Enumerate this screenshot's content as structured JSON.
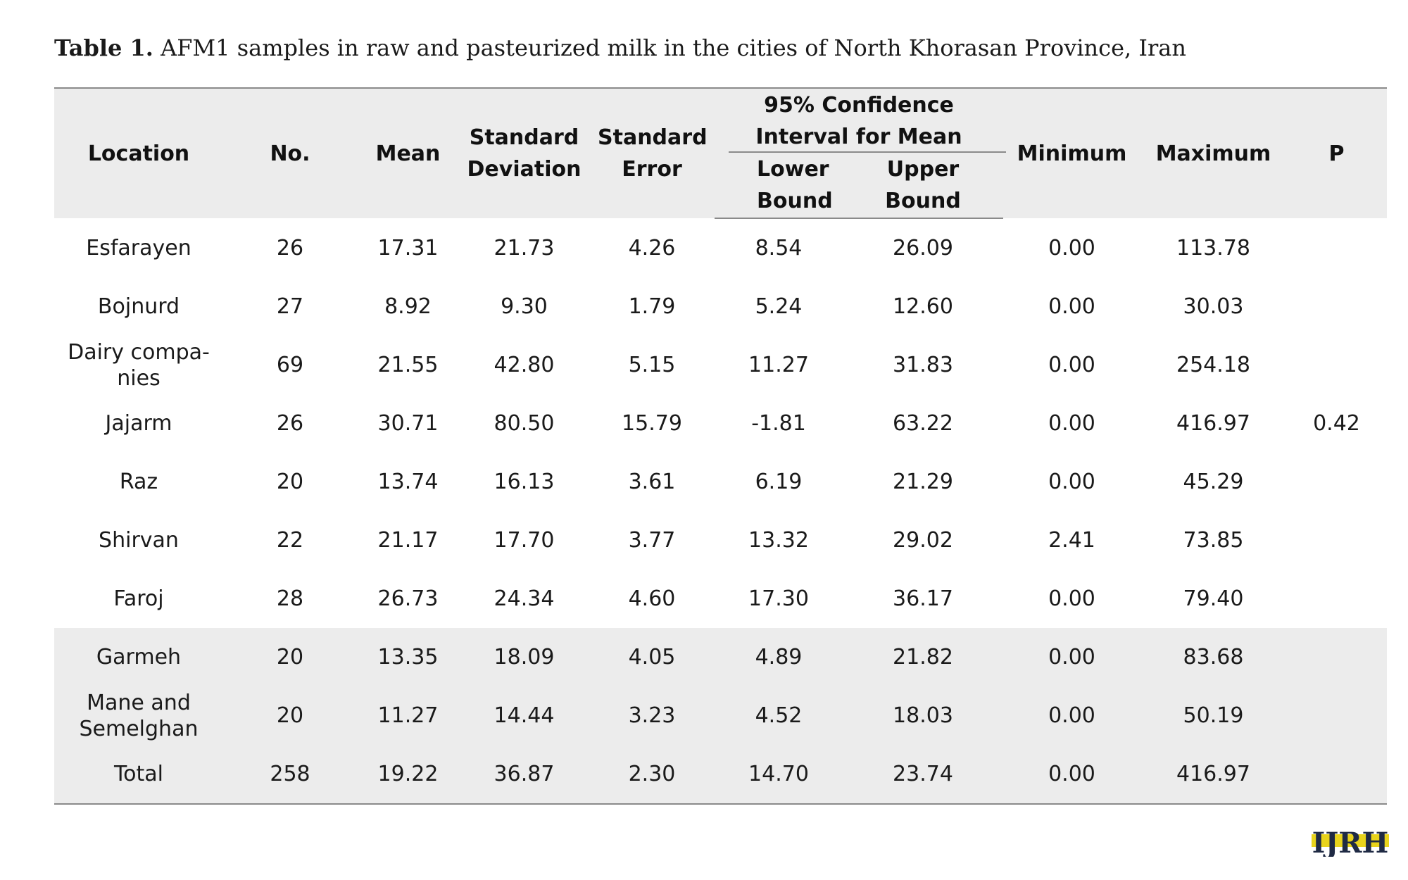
{
  "caption": {
    "label": "Table 1.",
    "text": " AFM1 samples in raw and pasteurized milk in the cities of North Khorasan Province, Iran"
  },
  "headers": {
    "location": "Location",
    "no": "No.",
    "mean": "Mean",
    "sd": "Standard Deviation",
    "se": "Standard Error",
    "ci": "95% Confidence Interval for Mean",
    "lower": "Lower Bound",
    "upper": "Upper Bound",
    "min": "Minimum",
    "max": "Maximum",
    "p": "P"
  },
  "rows": [
    {
      "location": "Esfarayen",
      "no": "26",
      "mean": "17.31",
      "sd": "21.73",
      "se": "4.26",
      "lower": "8.54",
      "upper": "26.09",
      "min": "0.00",
      "max": "113.78"
    },
    {
      "location": "Bojnurd",
      "no": "27",
      "mean": "8.92",
      "sd": "9.30",
      "se": "1.79",
      "lower": "5.24",
      "upper": "12.60",
      "min": "0.00",
      "max": "30.03"
    },
    {
      "location": "Dairy compa-nies",
      "no": "69",
      "mean": "21.55",
      "sd": "42.80",
      "se": "5.15",
      "lower": "11.27",
      "upper": "31.83",
      "min": "0.00",
      "max": "254.18"
    },
    {
      "location": "Jajarm",
      "no": "26",
      "mean": "30.71",
      "sd": "80.50",
      "se": "15.79",
      "lower": "-1.81",
      "upper": "63.22",
      "min": "0.00",
      "max": "416.97"
    },
    {
      "location": "Raz",
      "no": "20",
      "mean": "13.74",
      "sd": "16.13",
      "se": "3.61",
      "lower": "6.19",
      "upper": "21.29",
      "min": "0.00",
      "max": "45.29"
    },
    {
      "location": "Shirvan",
      "no": "22",
      "mean": "21.17",
      "sd": "17.70",
      "se": "3.77",
      "lower": "13.32",
      "upper": "29.02",
      "min": "2.41",
      "max": "73.85"
    },
    {
      "location": "Faroj",
      "no": "28",
      "mean": "26.73",
      "sd": "24.34",
      "se": "4.60",
      "lower": "17.30",
      "upper": "36.17",
      "min": "0.00",
      "max": "79.40"
    },
    {
      "location": "Garmeh",
      "no": "20",
      "mean": "13.35",
      "sd": "18.09",
      "se": "4.05",
      "lower": "4.89",
      "upper": "21.82",
      "min": "0.00",
      "max": "83.68"
    },
    {
      "location": "Mane and Semelghan",
      "no": "20",
      "mean": "11.27",
      "sd": "14.44",
      "se": "3.23",
      "lower": "4.52",
      "upper": "18.03",
      "min": "0.00",
      "max": "50.19"
    },
    {
      "location": "Total",
      "no": "258",
      "mean": "19.22",
      "sd": "36.87",
      "se": "2.30",
      "lower": "14.70",
      "upper": "23.74",
      "min": "0.00",
      "max": "416.97"
    }
  ],
  "p_value": "0.42",
  "logo": {
    "text": "IJRH",
    "colors": {
      "ink": "#1f2a44",
      "accent": "#e8d31c"
    }
  }
}
